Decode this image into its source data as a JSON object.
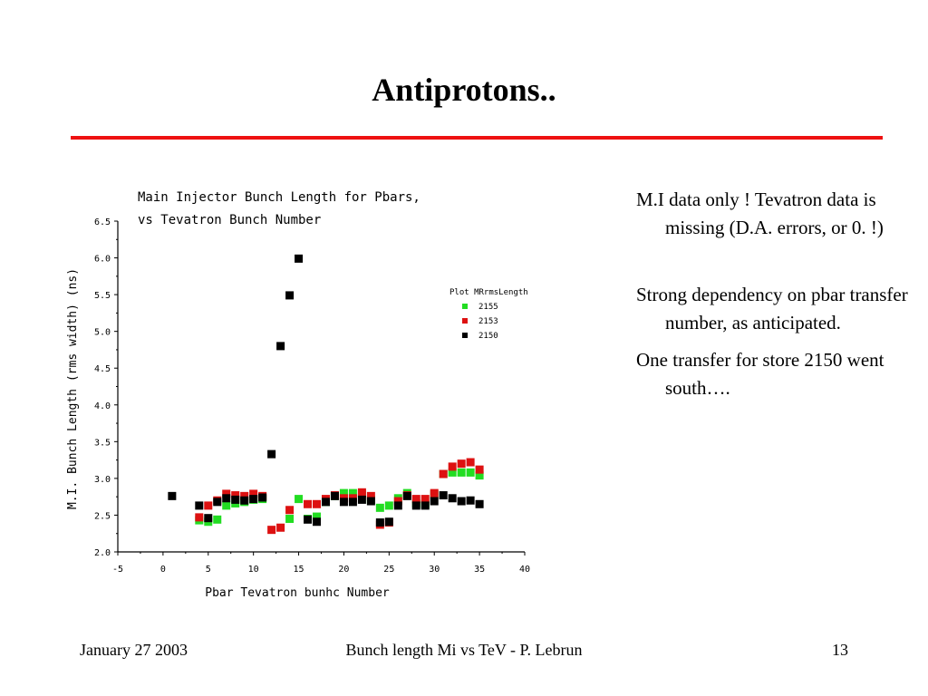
{
  "slide": {
    "title": "Antiprotons.."
  },
  "accent_color": "#ee1111",
  "notes": [
    "M.I data only ! Tevatron data is missing (D.A. errors, or 0. !)",
    "Strong dependency on pbar transfer number, as anticipated.",
    "One transfer for store 2150 went south…."
  ],
  "footer": {
    "date": "January  27  2003",
    "center": "Bunch length Mi vs TeV - P. Lebrun",
    "page": "13"
  },
  "chart_data": {
    "type": "scatter",
    "title_lines": [
      "Main Injector Bunch Length for Pbars,",
      "vs Tevatron Bunch Number"
    ],
    "xlabel": "Pbar Tevatron bunhc Number",
    "ylabel": "M.I. Bunch Length (rms width) (ns)",
    "xlim": [
      -5,
      40
    ],
    "ylim": [
      2.0,
      6.5
    ],
    "x_ticks": [
      "-5",
      "0",
      "5",
      "10",
      "15",
      "20",
      "25",
      "30",
      "35",
      "40"
    ],
    "y_ticks": [
      "2.0",
      "2.5",
      "3.0",
      "3.5",
      "4.0",
      "4.5",
      "5.0",
      "5.5",
      "6.0",
      "6.5"
    ],
    "legend_title": "Plot MRrmsLength",
    "legend_position": "top-right",
    "series": [
      {
        "name": "2155",
        "color": "#22dd22",
        "x": [
          4,
          5,
          6,
          7,
          8,
          9,
          10,
          11,
          14,
          15,
          16,
          17,
          18,
          19,
          20,
          21,
          22,
          23,
          24,
          25,
          26,
          27,
          28,
          29,
          30,
          31,
          32,
          33,
          34,
          35
        ],
        "y": [
          2.43,
          2.41,
          2.44,
          2.63,
          2.66,
          2.68,
          2.71,
          2.72,
          2.45,
          2.72,
          2.45,
          2.48,
          2.68,
          2.76,
          2.8,
          2.8,
          2.79,
          2.71,
          2.6,
          2.63,
          2.73,
          2.8,
          2.66,
          2.65,
          2.78,
          3.06,
          3.08,
          3.08,
          3.08,
          3.04
        ]
      },
      {
        "name": "2153",
        "color": "#dd1111",
        "x": [
          4,
          5,
          6,
          7,
          8,
          9,
          10,
          11,
          12,
          13,
          14,
          16,
          17,
          18,
          19,
          20,
          21,
          22,
          23,
          24,
          25,
          26,
          27,
          28,
          29,
          30,
          31,
          32,
          33,
          34,
          35
        ],
        "y": [
          2.47,
          2.63,
          2.7,
          2.79,
          2.77,
          2.76,
          2.79,
          2.76,
          2.3,
          2.33,
          2.57,
          2.65,
          2.65,
          2.72,
          2.77,
          2.73,
          2.73,
          2.81,
          2.76,
          2.37,
          2.4,
          2.69,
          2.77,
          2.72,
          2.72,
          2.8,
          3.06,
          3.16,
          3.2,
          3.22,
          3.12
        ]
      },
      {
        "name": "2150",
        "color": "#000000",
        "x": [
          1,
          4,
          5,
          6,
          7,
          8,
          9,
          10,
          11,
          12,
          13,
          14,
          15,
          16,
          17,
          18,
          19,
          20,
          21,
          22,
          23,
          24,
          25,
          26,
          27,
          28,
          29,
          30,
          31,
          32,
          33,
          34,
          35
        ],
        "y": [
          2.76,
          2.63,
          2.46,
          2.68,
          2.73,
          2.71,
          2.7,
          2.72,
          2.74,
          3.33,
          4.8,
          5.49,
          5.99,
          2.44,
          2.41,
          2.68,
          2.76,
          2.68,
          2.68,
          2.71,
          2.69,
          2.4,
          2.41,
          2.63,
          2.76,
          2.63,
          2.63,
          2.69,
          2.77,
          2.73,
          2.69,
          2.7,
          2.65
        ]
      }
    ]
  }
}
